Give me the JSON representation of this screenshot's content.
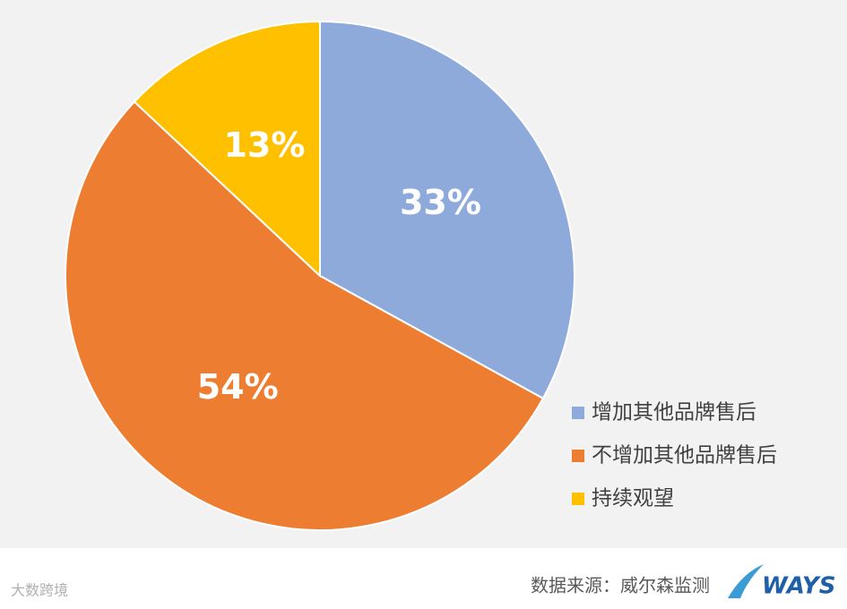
{
  "chart_data": {
    "type": "pie",
    "categories": [
      "增加其他品牌售后",
      "不增加其他品牌售后",
      "持续观望"
    ],
    "values": [
      33,
      54,
      13
    ],
    "value_labels": [
      "33%",
      "54%",
      "13%"
    ],
    "colors": [
      "#8eaadb",
      "#ed7d31",
      "#ffc000"
    ],
    "legend": "right"
  },
  "source": "数据来源：威尔森监测",
  "logo": "WAYS",
  "watermark": "大数跨境"
}
